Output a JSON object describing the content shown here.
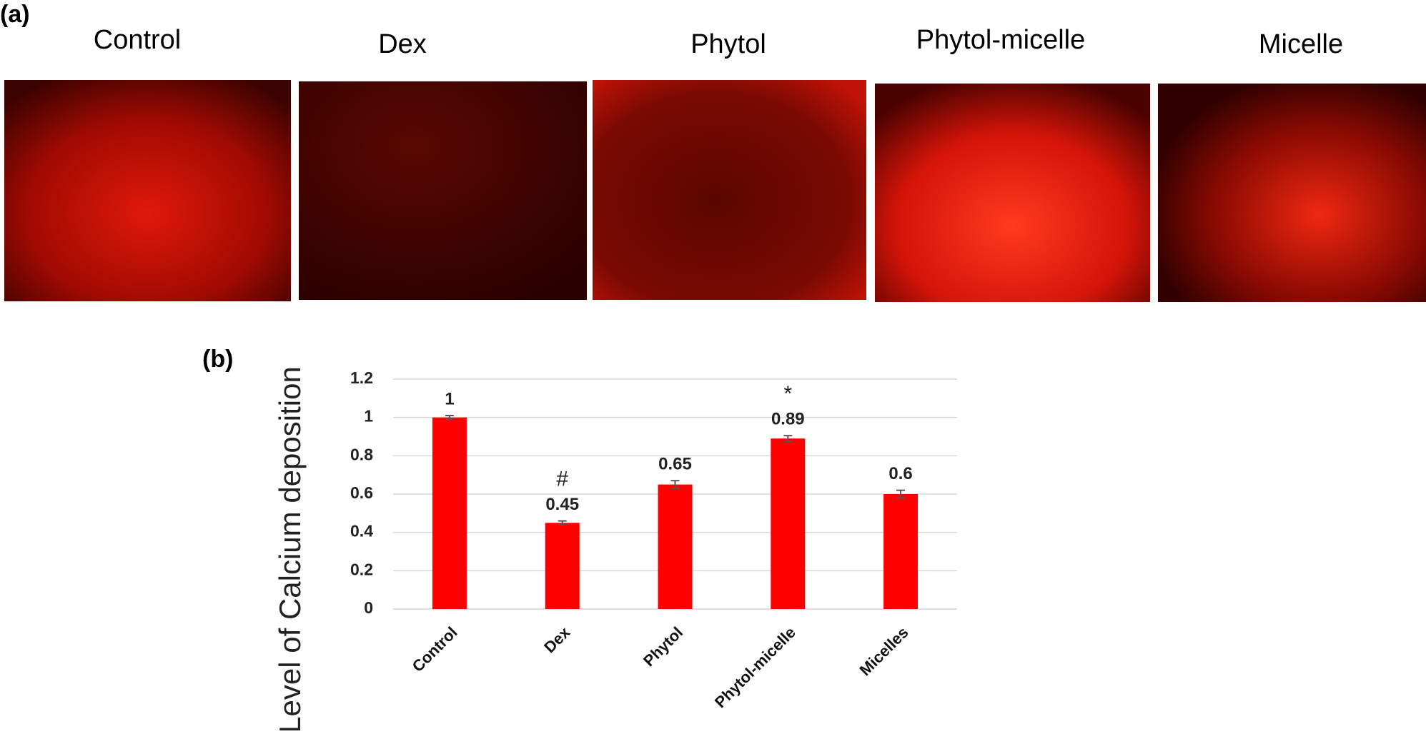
{
  "panel_a": {
    "label": "(a)",
    "images": [
      {
        "title": "Control"
      },
      {
        "title": "Dex"
      },
      {
        "title": "Phytol"
      },
      {
        "title": "Phytol-micelle"
      },
      {
        "title": "Micelle"
      }
    ]
  },
  "chart_data": {
    "type": "bar",
    "panel_label": "(b)",
    "y_label": "Level of Calcium deposition",
    "categories": [
      "Control",
      "Dex",
      "Phytol",
      "Phytol-micelle",
      "Micelles"
    ],
    "values": [
      1,
      0.45,
      0.65,
      0.89,
      0.6
    ],
    "errors": [
      0.01,
      0.01,
      0.02,
      0.015,
      0.02
    ],
    "annotations": [
      {
        "category": "Dex",
        "text": "#"
      },
      {
        "category": "Phytol-micelle",
        "text": "*"
      }
    ],
    "color": "#ff0000",
    "ylim": [
      0,
      1.2
    ],
    "yticks": [
      0,
      0.2,
      0.4,
      0.6,
      0.8,
      1,
      1.2
    ],
    "grid": true
  }
}
